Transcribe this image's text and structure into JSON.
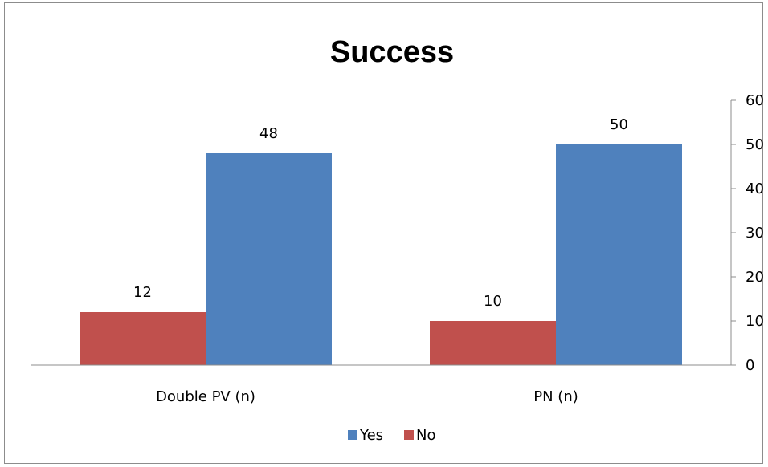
{
  "chart_data": {
    "type": "bar",
    "title": "Success",
    "categories": [
      "Double PV (n)",
      "PN (n)"
    ],
    "series": [
      {
        "name": "No",
        "color": "#C0504D",
        "values": [
          12,
          10
        ]
      },
      {
        "name": "Yes",
        "color": "#4F81BD",
        "values": [
          48,
          50
        ]
      }
    ],
    "ylim": [
      0,
      60
    ],
    "yticks": [
      0,
      10,
      20,
      30,
      40,
      50,
      60
    ],
    "yaxis_side": "right",
    "grid": false,
    "legend": {
      "position": "bottom",
      "order": [
        "Yes",
        "No"
      ]
    },
    "data_labels": true
  }
}
